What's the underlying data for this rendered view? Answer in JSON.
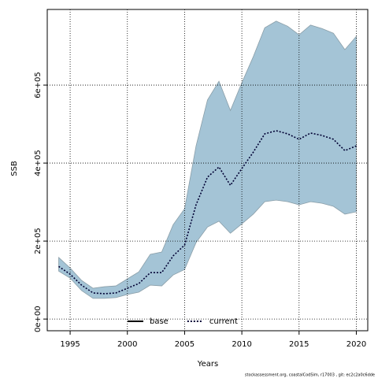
{
  "chart_data": {
    "type": "line",
    "xlabel": "Years",
    "ylabel": "SSB",
    "x": [
      1994,
      1995,
      1996,
      1997,
      1998,
      1999,
      2000,
      2001,
      2002,
      2003,
      2004,
      2005,
      2006,
      2007,
      2008,
      2009,
      2010,
      2011,
      2012,
      2013,
      2014,
      2015,
      2016,
      2017,
      2018,
      2019,
      2020
    ],
    "series": [
      {
        "name": "current",
        "color": "#000033",
        "dash": "dotted",
        "values": [
          135000,
          115000,
          87000,
          67000,
          65000,
          67000,
          79000,
          91000,
          119000,
          119000,
          162000,
          190000,
          293000,
          364000,
          390000,
          343000,
          386000,
          428000,
          475000,
          483000,
          475000,
          461000,
          477000,
          471000,
          461000,
          432000,
          444000
        ]
      }
    ],
    "band": {
      "color": "#a4c4d6",
      "edge": "#8a9ea8",
      "upper": [
        158000,
        131000,
        99000,
        79000,
        83000,
        85000,
        103000,
        121000,
        166000,
        172000,
        242000,
        283000,
        444000,
        562000,
        610000,
        535000,
        606000,
        673000,
        747000,
        764000,
        751000,
        729000,
        754000,
        745000,
        733000,
        691000,
        725000
      ],
      "lower": [
        123000,
        105000,
        73000,
        53000,
        53000,
        55000,
        63000,
        69000,
        87000,
        85000,
        113000,
        127000,
        196000,
        236000,
        251000,
        220000,
        244000,
        269000,
        301000,
        305000,
        301000,
        293000,
        301000,
        297000,
        289000,
        269000,
        275000
      ]
    },
    "legend": [
      {
        "name": "base",
        "color": "#000000",
        "dash": "solid"
      },
      {
        "name": "current",
        "color": "#000033",
        "dash": "dotted"
      }
    ],
    "legend_position": "bottom",
    "xlim": [
      1993,
      2021
    ],
    "ylim": [
      -30000,
      794000
    ],
    "xticks": [
      1995,
      2000,
      2005,
      2010,
      2015,
      2020
    ],
    "yticks": [
      {
        "value": 0,
        "label": "0e+00"
      },
      {
        "value": 200000,
        "label": "2e+05"
      },
      {
        "value": 400000,
        "label": "4e+05"
      },
      {
        "value": 600000,
        "label": "6e+05"
      }
    ],
    "grid": true,
    "footer": "stockassessment.org, coastalCodSim, r17003 , git: ec2c2a0c6dde"
  }
}
